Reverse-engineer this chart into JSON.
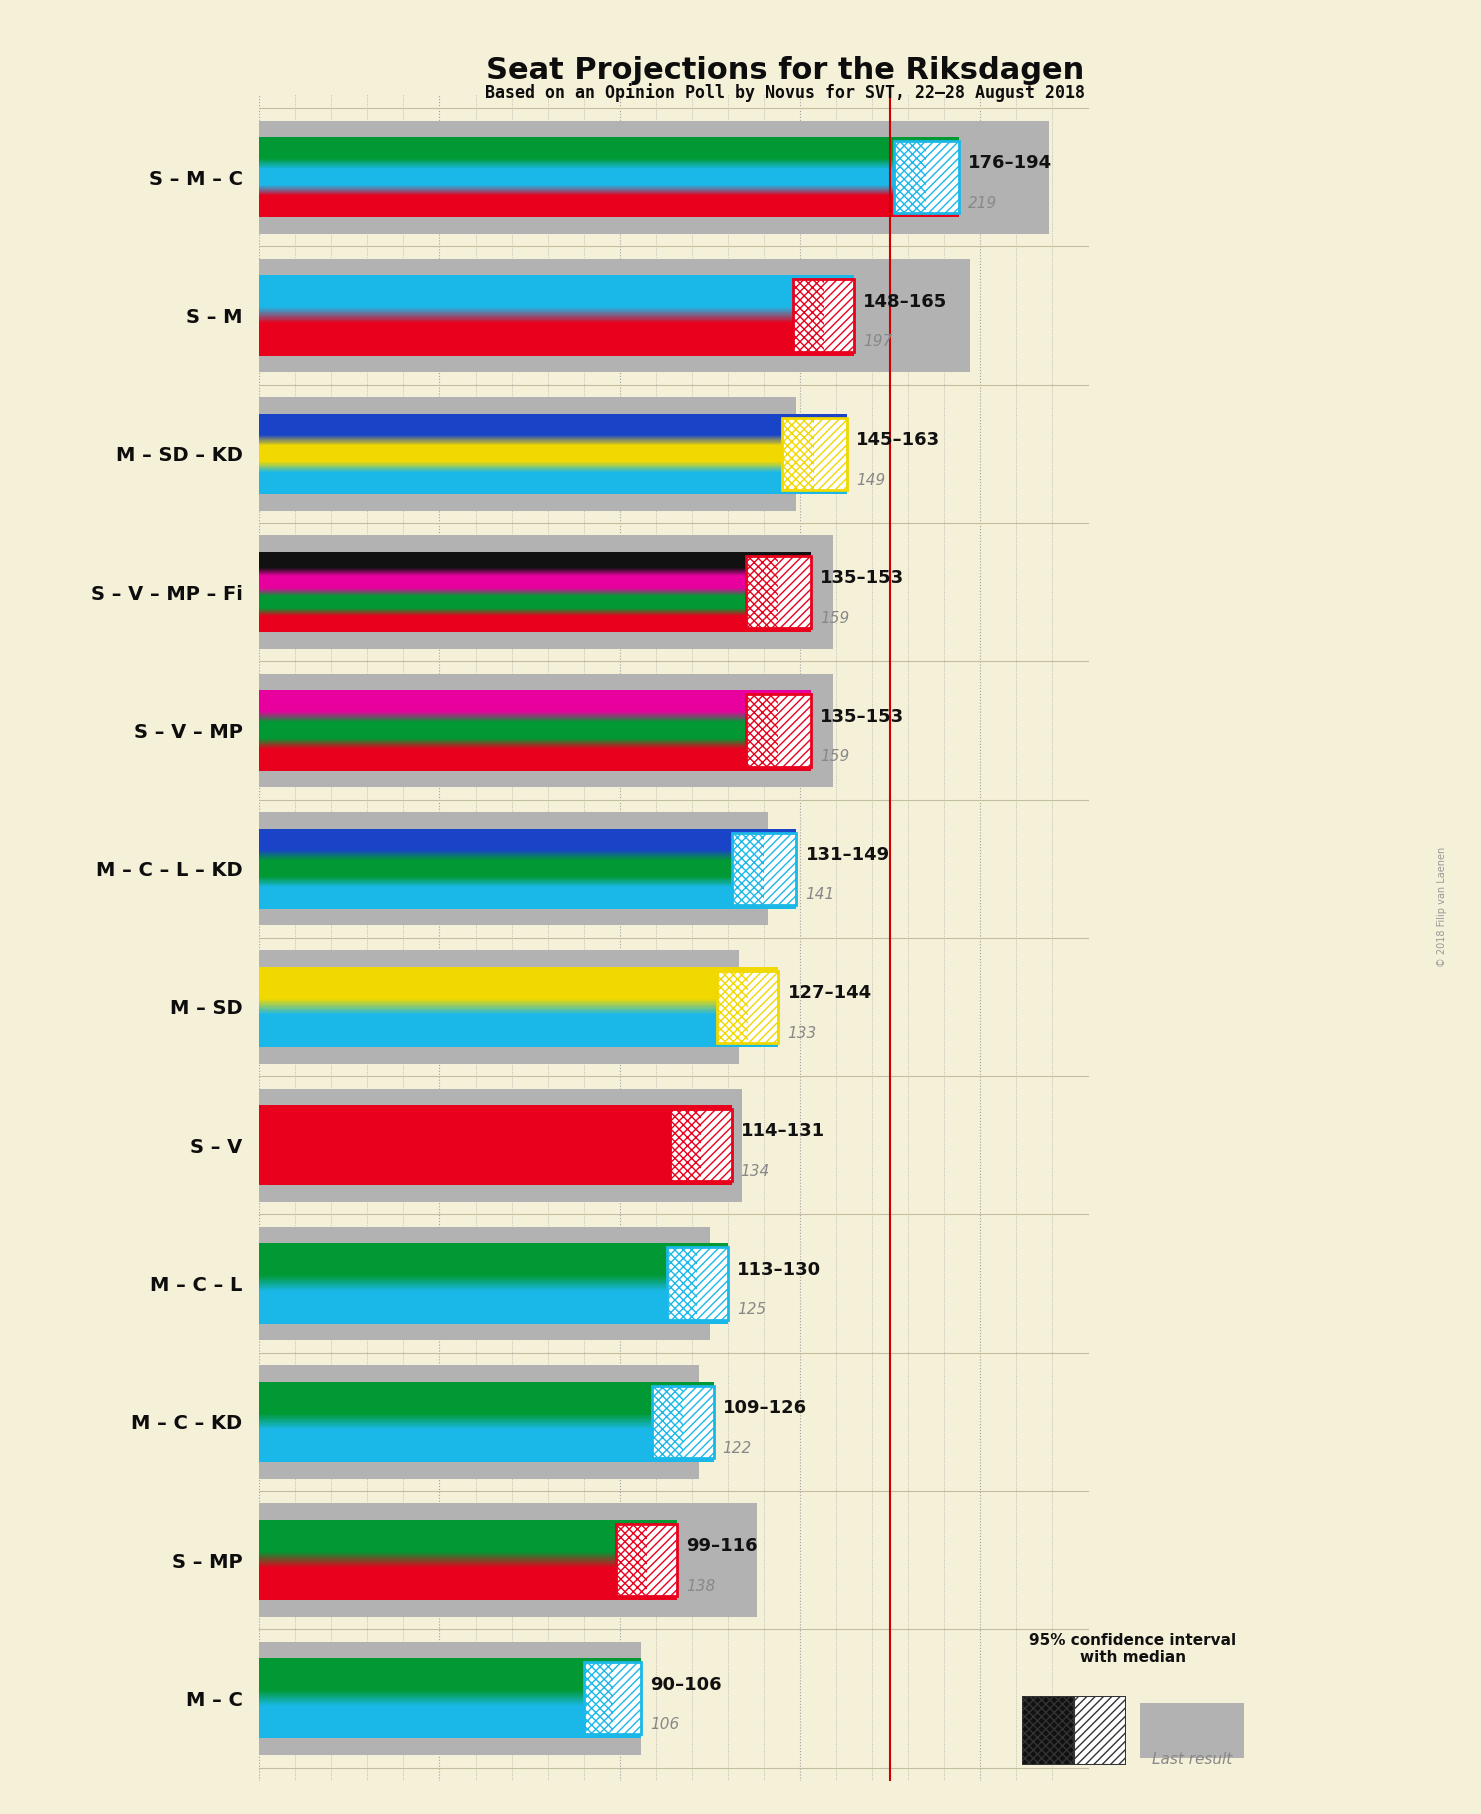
{
  "title": "Seat Projections for the Riksdagen",
  "subtitle": "Based on an Opinion Poll by Novus for SVT, 22–28 August 2018",
  "background_color": "#f5f0d8",
  "copyright": "© 2018 Filip van Laenen",
  "majority_line": 175,
  "xlim_max": 230,
  "coalitions": [
    {
      "name": "S – M – C",
      "low": 176,
      "high": 194,
      "last": 219,
      "bands": [
        "#e8001c",
        "#1ab8e8",
        "#009933"
      ],
      "ci_color": "#1ab8e8",
      "ci_hatch_color": "#1ab8e8"
    },
    {
      "name": "S – M",
      "low": 148,
      "high": 165,
      "last": 197,
      "bands": [
        "#e8001c",
        "#1ab8e8"
      ],
      "ci_color": "#e8001c",
      "ci_hatch_color": "#e8001c"
    },
    {
      "name": "M – SD – KD",
      "low": 145,
      "high": 163,
      "last": 149,
      "bands": [
        "#1ab8e8",
        "#f0d800",
        "#1a44c8"
      ],
      "ci_color": "#f0d800",
      "ci_hatch_color": "#f0d800"
    },
    {
      "name": "S – V – MP – Fi",
      "low": 135,
      "high": 153,
      "last": 159,
      "bands": [
        "#e8001c",
        "#009933",
        "#e8009e",
        "#111111"
      ],
      "ci_color": "#e8001c",
      "ci_hatch_color": "#e8001c"
    },
    {
      "name": "S – V – MP",
      "low": 135,
      "high": 153,
      "last": 159,
      "bands": [
        "#e8001c",
        "#009933",
        "#e8009e"
      ],
      "ci_color": "#e8001c",
      "ci_hatch_color": "#e8001c"
    },
    {
      "name": "M – C – L – KD",
      "low": 131,
      "high": 149,
      "last": 141,
      "bands": [
        "#1ab8e8",
        "#009933",
        "#1a44c8"
      ],
      "ci_color": "#1ab8e8",
      "ci_hatch_color": "#1ab8e8"
    },
    {
      "name": "M – SD",
      "low": 127,
      "high": 144,
      "last": 133,
      "bands": [
        "#1ab8e8",
        "#f0d800"
      ],
      "ci_color": "#f0d800",
      "ci_hatch_color": "#f0d800"
    },
    {
      "name": "S – V",
      "low": 114,
      "high": 131,
      "last": 134,
      "bands": [
        "#e8001c"
      ],
      "ci_color": "#e8001c",
      "ci_hatch_color": "#e8001c"
    },
    {
      "name": "M – C – L",
      "low": 113,
      "high": 130,
      "last": 125,
      "bands": [
        "#1ab8e8",
        "#009933"
      ],
      "ci_color": "#1ab8e8",
      "ci_hatch_color": "#1ab8e8"
    },
    {
      "name": "M – C – KD",
      "low": 109,
      "high": 126,
      "last": 122,
      "bands": [
        "#1ab8e8",
        "#009933"
      ],
      "ci_color": "#1ab8e8",
      "ci_hatch_color": "#1ab8e8"
    },
    {
      "name": "S – MP",
      "low": 99,
      "high": 116,
      "last": 138,
      "bands": [
        "#e8001c",
        "#009933"
      ],
      "ci_color": "#e8001c",
      "ci_hatch_color": "#e8001c"
    },
    {
      "name": "M – C",
      "low": 90,
      "high": 106,
      "last": 106,
      "bands": [
        "#1ab8e8",
        "#009933"
      ],
      "ci_color": "#1ab8e8",
      "ci_hatch_color": "#1ab8e8"
    }
  ]
}
